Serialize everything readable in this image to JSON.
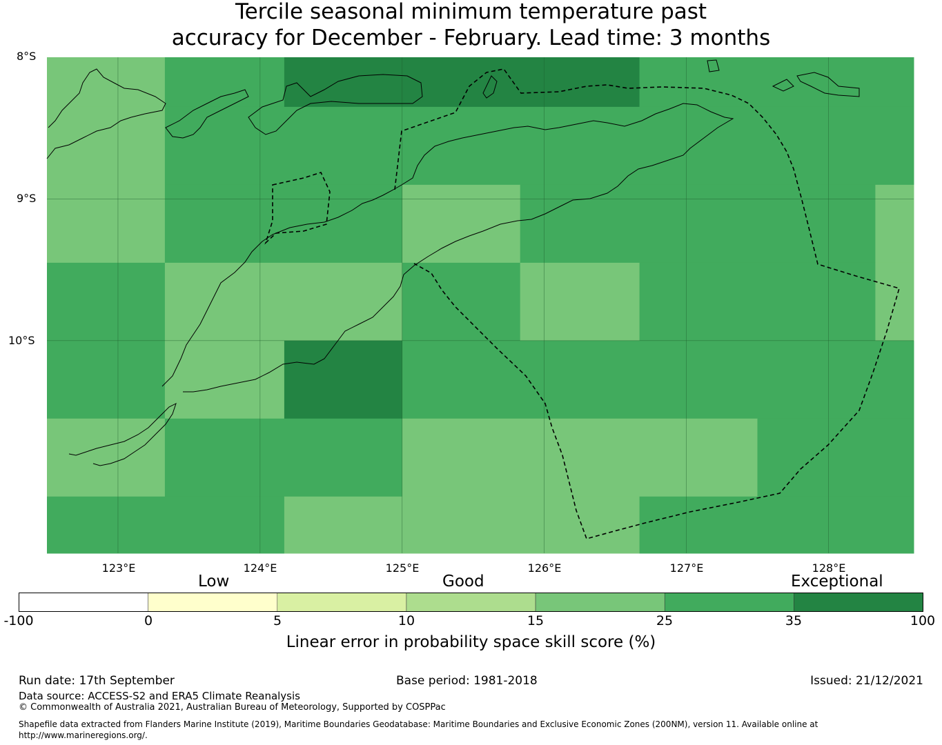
{
  "title": {
    "line1": "Tercile seasonal minimum temperature past",
    "line2": "accuracy for December - February. Lead time: 3 months"
  },
  "map": {
    "lat_labels": [
      "8°S",
      "9°S",
      "10°S"
    ],
    "lon_labels": [
      "123°E",
      "124°E",
      "125°E",
      "126°E",
      "127°E",
      "128°E"
    ],
    "lon_range": [
      122.5,
      128.6
    ],
    "lat_range": [
      -8.0,
      -11.5
    ],
    "colors": {
      "c15_25": "#78c679",
      "c25_35": "#41ab5d",
      "c35_100": "#238443"
    },
    "grid_cells": [
      {
        "lat": [
          -8.0,
          -8.35
        ],
        "lon": [
          122.5,
          123.33
        ],
        "class": "c15_25"
      },
      {
        "lat": [
          -8.0,
          -8.35
        ],
        "lon": [
          123.33,
          124.17
        ],
        "class": "c25_35"
      },
      {
        "lat": [
          -8.0,
          -8.35
        ],
        "lon": [
          124.17,
          126.67
        ],
        "class": "c35_100"
      },
      {
        "lat": [
          -8.0,
          -8.35
        ],
        "lon": [
          126.67,
          128.6
        ],
        "class": "c25_35"
      },
      {
        "lat": [
          -8.35,
          -8.9
        ],
        "lon": [
          122.5,
          123.33
        ],
        "class": "c15_25"
      },
      {
        "lat": [
          -8.35,
          -8.9
        ],
        "lon": [
          123.33,
          128.6
        ],
        "class": "c25_35"
      },
      {
        "lat": [
          -8.9,
          -9.45
        ],
        "lon": [
          122.5,
          123.33
        ],
        "class": "c15_25"
      },
      {
        "lat": [
          -8.9,
          -9.45
        ],
        "lon": [
          123.33,
          125.0
        ],
        "class": "c25_35"
      },
      {
        "lat": [
          -8.9,
          -9.45
        ],
        "lon": [
          125.0,
          125.83
        ],
        "class": "c15_25"
      },
      {
        "lat": [
          -8.9,
          -9.45
        ],
        "lon": [
          125.83,
          128.33
        ],
        "class": "c25_35"
      },
      {
        "lat": [
          -8.9,
          -9.45
        ],
        "lon": [
          128.33,
          128.6
        ],
        "class": "c15_25"
      },
      {
        "lat": [
          -9.45,
          -10.0
        ],
        "lon": [
          122.5,
          123.33
        ],
        "class": "c25_35"
      },
      {
        "lat": [
          -9.45,
          -10.0
        ],
        "lon": [
          123.33,
          125.0
        ],
        "class": "c15_25"
      },
      {
        "lat": [
          -9.45,
          -10.0
        ],
        "lon": [
          125.0,
          125.83
        ],
        "class": "c25_35"
      },
      {
        "lat": [
          -9.45,
          -10.0
        ],
        "lon": [
          125.83,
          126.67
        ],
        "class": "c15_25"
      },
      {
        "lat": [
          -9.45,
          -10.0
        ],
        "lon": [
          126.67,
          128.33
        ],
        "class": "c25_35"
      },
      {
        "lat": [
          -9.45,
          -10.0
        ],
        "lon": [
          128.33,
          128.6
        ],
        "class": "c15_25"
      },
      {
        "lat": [
          -10.0,
          -10.55
        ],
        "lon": [
          122.5,
          123.33
        ],
        "class": "c25_35"
      },
      {
        "lat": [
          -10.0,
          -10.55
        ],
        "lon": [
          123.33,
          124.17
        ],
        "class": "c15_25"
      },
      {
        "lat": [
          -10.0,
          -10.55
        ],
        "lon": [
          124.17,
          125.0
        ],
        "class": "c35_100"
      },
      {
        "lat": [
          -10.0,
          -10.55
        ],
        "lon": [
          125.0,
          128.6
        ],
        "class": "c25_35"
      },
      {
        "lat": [
          -10.55,
          -11.1
        ],
        "lon": [
          122.5,
          123.33
        ],
        "class": "c15_25"
      },
      {
        "lat": [
          -10.55,
          -11.1
        ],
        "lon": [
          123.33,
          125.0
        ],
        "class": "c25_35"
      },
      {
        "lat": [
          -10.55,
          -11.1
        ],
        "lon": [
          125.0,
          127.5
        ],
        "class": "c15_25"
      },
      {
        "lat": [
          -10.55,
          -11.1
        ],
        "lon": [
          127.5,
          128.6
        ],
        "class": "c25_35"
      },
      {
        "lat": [
          -11.1,
          -11.5
        ],
        "lon": [
          122.5,
          124.17
        ],
        "class": "c25_35"
      },
      {
        "lat": [
          -11.1,
          -11.5
        ],
        "lon": [
          124.17,
          126.67
        ],
        "class": "c15_25"
      },
      {
        "lat": [
          -11.1,
          -11.5
        ],
        "lon": [
          126.67,
          128.6
        ],
        "class": "c25_35"
      }
    ]
  },
  "colorbar": {
    "categories": [
      "Low",
      "Good",
      "Exceptional"
    ],
    "ticks": [
      "-100",
      "0",
      "5",
      "10",
      "15",
      "25",
      "35",
      "100"
    ],
    "bins": [
      {
        "range": [
          -100,
          0
        ],
        "color": "#ffffff"
      },
      {
        "range": [
          0,
          5
        ],
        "color": "#ffffcc"
      },
      {
        "range": [
          5,
          10
        ],
        "color": "#d9f0a3"
      },
      {
        "range": [
          10,
          15
        ],
        "color": "#addd8e"
      },
      {
        "range": [
          15,
          25
        ],
        "color": "#78c679"
      },
      {
        "range": [
          25,
          35
        ],
        "color": "#41ab5d"
      },
      {
        "range": [
          35,
          100
        ],
        "color": "#238443"
      }
    ],
    "label": "Linear error in probability space skill score (%)"
  },
  "footer": {
    "run_date": "Run date: 17th September",
    "base_period": "Base period: 1981-2018",
    "issued": "Issued: 21/12/2021",
    "data_source": "Data source: ACCESS-S2 and ERA5 Climate Reanalysis",
    "copyright": "© Commonwealth of Australia 2021, Australian Bureau of Meteorology, Supported by COSPPac",
    "shapefile": "Shapefile data extracted from Flanders Marine Institute (2019), Maritime Boundaries Geodatabase: Maritime Boundaries and Exclusive Economic Zones (200NM), version 11. Available online at http://www.marineregions.org/."
  }
}
